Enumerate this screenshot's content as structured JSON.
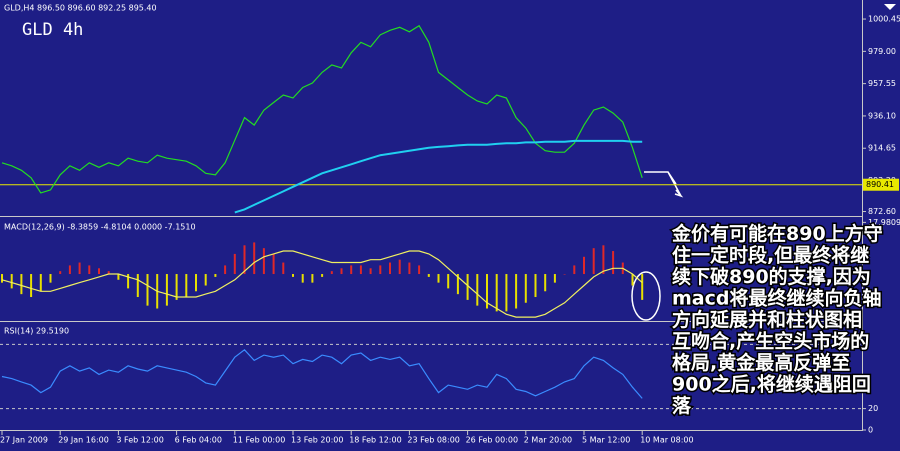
{
  "chart_data": [
    {
      "type": "line",
      "title": "GLD 4h",
      "header": "GLD,H4  896.50 896.60 892.25 895.40",
      "categories": [
        "27 Jan 2009",
        null,
        null,
        null,
        null,
        null,
        "29 Jan 16:00",
        null,
        null,
        null,
        null,
        null,
        "3 Feb 12:00",
        null,
        null,
        null,
        null,
        null,
        "6 Feb 04:00",
        null,
        null,
        null,
        null,
        null,
        "11 Feb 00:00",
        null,
        null,
        null,
        null,
        null,
        "13 Feb 20:00",
        null,
        null,
        null,
        null,
        null,
        "18 Feb 12:00",
        null,
        null,
        null,
        null,
        null,
        "23 Feb 08:00",
        null,
        null,
        null,
        null,
        null,
        "26 Feb 00:00",
        null,
        null,
        null,
        null,
        null,
        "2 Mar 20:00",
        null,
        null,
        null,
        null,
        null,
        "5 Mar 12:00",
        null,
        null,
        null,
        null,
        null,
        "10 Mar 08:00"
      ],
      "series": [
        {
          "color": "#22dd22",
          "values": [
            905,
            903,
            900,
            895,
            885,
            887,
            897,
            903,
            900,
            905,
            902,
            905,
            903,
            908,
            906,
            905,
            910,
            908,
            907,
            906,
            903,
            898,
            897,
            905,
            920,
            935,
            930,
            940,
            945,
            950,
            948,
            955,
            958,
            965,
            970,
            968,
            978,
            985,
            982,
            990,
            993,
            995,
            992,
            996,
            985,
            965,
            960,
            955,
            950,
            946,
            944,
            950,
            948,
            935,
            928,
            918,
            913,
            912,
            912,
            918,
            930,
            940,
            942,
            938,
            932,
            915,
            895
          ]
        },
        {
          "color": "#20d0f0",
          "values": [
            null,
            null,
            null,
            null,
            null,
            null,
            null,
            null,
            null,
            null,
            null,
            null,
            null,
            null,
            null,
            null,
            null,
            null,
            null,
            null,
            null,
            null,
            null,
            null,
            872,
            874,
            877,
            880,
            883,
            886,
            889,
            892,
            895,
            898,
            900,
            902,
            904,
            906,
            908,
            910,
            911,
            912,
            913,
            914,
            915,
            915.5,
            916,
            916.5,
            917,
            917,
            917,
            917.5,
            918,
            918,
            918.5,
            918.5,
            919,
            919,
            919,
            919.5,
            919.5,
            919.5,
            919.5,
            919.5,
            919.5,
            919,
            919
          ]
        }
      ],
      "support": 890.41,
      "support_color": "#e8e800",
      "ylim": [
        870.3,
        1013.1
      ],
      "yticks": [
        1000.45,
        {
          "value": 979.0,
          "label": "979.00"
        },
        957.55,
        {
          "value": 936.1,
          "label": "936.10"
        },
        914.65,
        {
          "value": 893.2,
          "label": "893.20"
        },
        {
          "value": 872.6,
          "label": "872.60"
        }
      ]
    },
    {
      "type": "macd",
      "header": "MACD(12,26,9) -8.3859 -4.8104 0.0000 -7.1510",
      "histogram": [
        -3,
        -5,
        -7,
        -8,
        -6,
        -3,
        1,
        3,
        4,
        3,
        2,
        1,
        -2,
        -5,
        -8,
        -11,
        -12,
        -11,
        -9,
        -8,
        -6,
        -4,
        -1,
        3,
        7,
        10,
        11,
        9,
        7,
        4,
        -1,
        -3,
        -3,
        -1,
        1,
        2,
        3,
        3,
        2,
        3,
        4,
        5,
        4,
        3,
        -1,
        -3,
        -5,
        -7,
        -9,
        -11,
        -12,
        -13,
        -13,
        -12,
        -10,
        -8,
        -6,
        -3,
        0,
        3,
        6,
        9,
        10,
        8,
        4,
        -4,
        -9
      ],
      "signal": [
        -2,
        -3,
        -4,
        -5,
        -6,
        -6,
        -5,
        -4,
        -3,
        -2,
        -1,
        0,
        0,
        -1,
        -2,
        -4,
        -6,
        -7,
        -8,
        -8,
        -8,
        -7,
        -6,
        -4,
        -2,
        1,
        4,
        6,
        7,
        8,
        8,
        7,
        6,
        5,
        4,
        4,
        4,
        4,
        5,
        5,
        6,
        7,
        8,
        8,
        7,
        5,
        2,
        -1,
        -4,
        -7,
        -10,
        -12,
        -14,
        -15,
        -15,
        -15,
        -14,
        -12,
        -10,
        -7,
        -4,
        -1,
        1,
        2,
        2,
        0,
        -3
      ],
      "positive_color": "#e02828",
      "negative_color": "#e8e000",
      "signal_color": "#f0f060",
      "ylim": [
        -16,
        19.5
      ],
      "yticks": [
        17.9809
      ]
    },
    {
      "type": "line",
      "header": "RSI(14) 29.5190",
      "series": [
        {
          "color": "#3a8cff",
          "values": [
            50,
            48,
            45,
            42,
            35,
            40,
            55,
            60,
            55,
            58,
            52,
            56,
            54,
            60,
            57,
            55,
            60,
            58,
            56,
            54,
            50,
            44,
            42,
            55,
            68,
            75,
            65,
            70,
            68,
            70,
            62,
            66,
            64,
            70,
            68,
            62,
            70,
            72,
            65,
            68,
            66,
            68,
            60,
            62,
            48,
            35,
            42,
            40,
            38,
            42,
            40,
            52,
            48,
            38,
            36,
            32,
            36,
            40,
            45,
            48,
            60,
            68,
            65,
            58,
            52,
            40,
            29.5
          ]
        }
      ],
      "levels": [
        80,
        20
      ],
      "ylim": [
        0,
        100
      ],
      "yticks": [
        20,
        0
      ]
    }
  ],
  "annotation": [
    "金价有可能在890上方守",
    "住一定时段,但最终将继",
    "续下破890的支撑,因为",
    "macd将最终继续向负轴",
    "方向延展并和柱状图相",
    "互吻合,产生空头市场的",
    "格局,黄金最高反弹至",
    "900之后,将继续遇阻回",
    "落"
  ]
}
